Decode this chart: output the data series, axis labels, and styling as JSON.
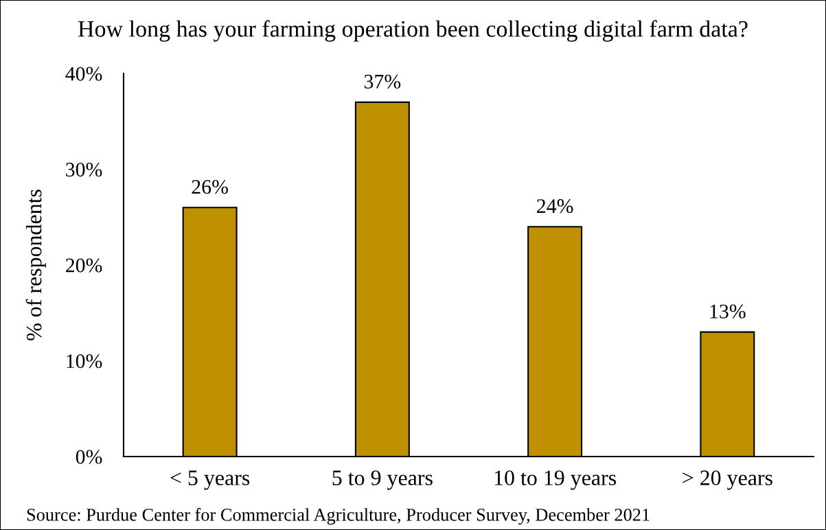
{
  "chart_data": {
    "type": "bar",
    "title": "How long has your farming operation been collecting digital farm data?",
    "ylabel": "% of respondents",
    "categories": [
      "< 5 years",
      "5 to 9 years",
      "10 to 19 years",
      "> 20 years"
    ],
    "values": [
      26,
      37,
      24,
      13
    ],
    "value_labels": [
      "26%",
      "37%",
      "24%",
      "13%"
    ],
    "color": "#bf9000",
    "ylim": [
      0,
      40
    ],
    "yticks": [
      {
        "value": 0,
        "label": "0%"
      },
      {
        "value": 10,
        "label": "10%"
      },
      {
        "value": 20,
        "label": "20%"
      },
      {
        "value": 30,
        "label": "30%"
      },
      {
        "value": 40,
        "label": "40%"
      }
    ],
    "grid": false,
    "annotations": [
      "Source: Purdue Center for Commercial Agriculture, Producer Survey, December 2021"
    ]
  }
}
